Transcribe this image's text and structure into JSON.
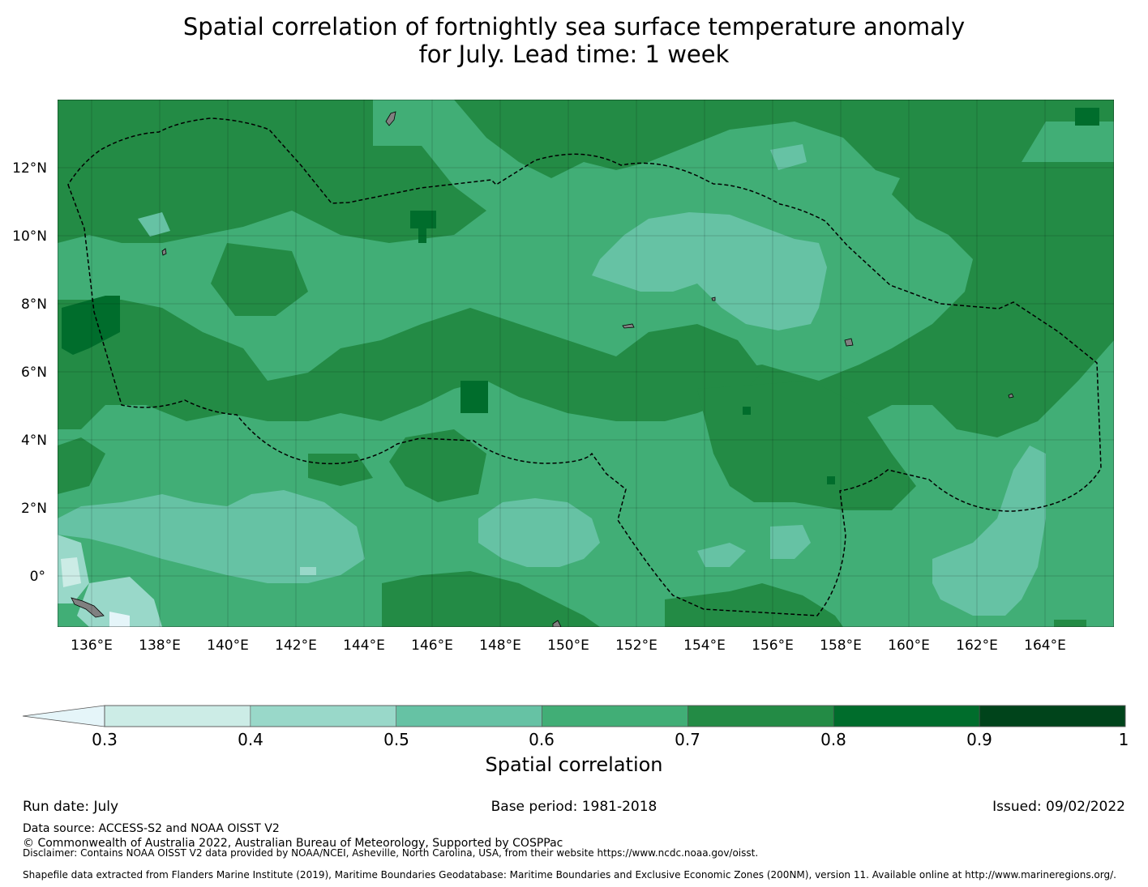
{
  "title_line1": "Spatial correlation of fortnightly sea surface temperature anomaly",
  "title_line2": "for July. Lead time: 1 week",
  "map": {
    "lon_range": [
      135,
      166
    ],
    "lat_range": [
      -1.5,
      14
    ],
    "lon_ticks": [
      "136°E",
      "138°E",
      "140°E",
      "142°E",
      "144°E",
      "146°E",
      "148°E",
      "150°E",
      "152°E",
      "154°E",
      "156°E",
      "158°E",
      "160°E",
      "162°E",
      "164°E"
    ],
    "lat_ticks": [
      "12°N",
      "10°N",
      "8°N",
      "6°N",
      "4°N",
      "2°N",
      "0°"
    ],
    "gridlines": true,
    "boundary_style": "dashed black line (EEZ)"
  },
  "colorbar": {
    "label": "Spatial correlation",
    "ticks": [
      "0.3",
      "0.4",
      "0.5",
      "0.6",
      "0.7",
      "0.8",
      "0.9",
      "1"
    ],
    "bins": [
      {
        "from": 0.3,
        "to": 0.4,
        "color": "#ccece6"
      },
      {
        "from": 0.4,
        "to": 0.5,
        "color": "#99d8c9"
      },
      {
        "from": 0.5,
        "to": 0.6,
        "color": "#66c2a4"
      },
      {
        "from": 0.6,
        "to": 0.7,
        "color": "#41ae76"
      },
      {
        "from": 0.7,
        "to": 0.8,
        "color": "#238b45"
      },
      {
        "from": 0.8,
        "to": 0.9,
        "color": "#006d2c"
      },
      {
        "from": 0.9,
        "to": 1.0,
        "color": "#00441b"
      }
    ],
    "under_color": "#e5f5f9"
  },
  "footer": {
    "run_date": "Run date: July",
    "base_period": "Base period: 1981-2018",
    "issued": "Issued: 09/02/2022",
    "data_source": "Data source: ACCESS-S2 and NOAA OISST V2",
    "copyright": "© Commonwealth of Australia 2022, Australian Bureau of Meteorology, Supported by COSPPac",
    "disclaimer": "Disclaimer: Contains NOAA OISST V2 data provided by NOAA/NCEI, Asheville, North Carolina, USA, from their website https://www.ncdc.noaa.gov/oisst.",
    "shapefile": "Shapefile data extracted from Flanders Marine Institute (2019), Maritime Boundaries Geodatabase: Maritime Boundaries and Exclusive Economic Zones (200NM), version 11. Available online at http://www.marineregions.org/."
  }
}
